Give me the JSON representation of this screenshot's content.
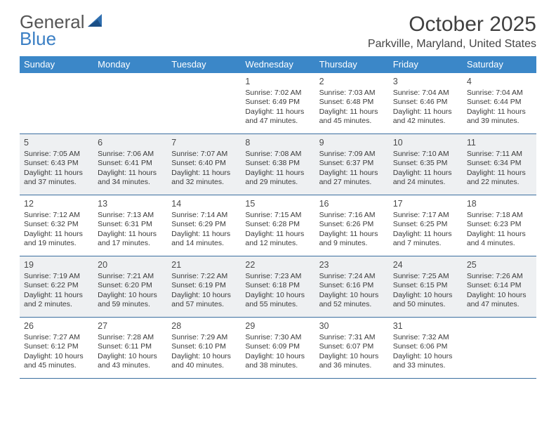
{
  "logo": {
    "text1": "General",
    "text2": "Blue"
  },
  "title": "October 2025",
  "location": "Parkville, Maryland, United States",
  "colors": {
    "header_bg": "#3b87c8",
    "header_text": "#ffffff",
    "rule": "#3b6fa0",
    "alt_row_bg": "#eef0f2",
    "text": "#3a3a3a",
    "title_color": "#404040",
    "logo_gray": "#565656",
    "logo_blue": "#3b7fc4"
  },
  "weekdays": [
    "Sunday",
    "Monday",
    "Tuesday",
    "Wednesday",
    "Thursday",
    "Friday",
    "Saturday"
  ],
  "weeks": [
    {
      "alt": false,
      "days": [
        null,
        null,
        null,
        {
          "n": "1",
          "sunrise": "7:02 AM",
          "sunset": "6:49 PM",
          "daylight": "11 hours and 47 minutes."
        },
        {
          "n": "2",
          "sunrise": "7:03 AM",
          "sunset": "6:48 PM",
          "daylight": "11 hours and 45 minutes."
        },
        {
          "n": "3",
          "sunrise": "7:04 AM",
          "sunset": "6:46 PM",
          "daylight": "11 hours and 42 minutes."
        },
        {
          "n": "4",
          "sunrise": "7:04 AM",
          "sunset": "6:44 PM",
          "daylight": "11 hours and 39 minutes."
        }
      ]
    },
    {
      "alt": true,
      "days": [
        {
          "n": "5",
          "sunrise": "7:05 AM",
          "sunset": "6:43 PM",
          "daylight": "11 hours and 37 minutes."
        },
        {
          "n": "6",
          "sunrise": "7:06 AM",
          "sunset": "6:41 PM",
          "daylight": "11 hours and 34 minutes."
        },
        {
          "n": "7",
          "sunrise": "7:07 AM",
          "sunset": "6:40 PM",
          "daylight": "11 hours and 32 minutes."
        },
        {
          "n": "8",
          "sunrise": "7:08 AM",
          "sunset": "6:38 PM",
          "daylight": "11 hours and 29 minutes."
        },
        {
          "n": "9",
          "sunrise": "7:09 AM",
          "sunset": "6:37 PM",
          "daylight": "11 hours and 27 minutes."
        },
        {
          "n": "10",
          "sunrise": "7:10 AM",
          "sunset": "6:35 PM",
          "daylight": "11 hours and 24 minutes."
        },
        {
          "n": "11",
          "sunrise": "7:11 AM",
          "sunset": "6:34 PM",
          "daylight": "11 hours and 22 minutes."
        }
      ]
    },
    {
      "alt": false,
      "days": [
        {
          "n": "12",
          "sunrise": "7:12 AM",
          "sunset": "6:32 PM",
          "daylight": "11 hours and 19 minutes."
        },
        {
          "n": "13",
          "sunrise": "7:13 AM",
          "sunset": "6:31 PM",
          "daylight": "11 hours and 17 minutes."
        },
        {
          "n": "14",
          "sunrise": "7:14 AM",
          "sunset": "6:29 PM",
          "daylight": "11 hours and 14 minutes."
        },
        {
          "n": "15",
          "sunrise": "7:15 AM",
          "sunset": "6:28 PM",
          "daylight": "11 hours and 12 minutes."
        },
        {
          "n": "16",
          "sunrise": "7:16 AM",
          "sunset": "6:26 PM",
          "daylight": "11 hours and 9 minutes."
        },
        {
          "n": "17",
          "sunrise": "7:17 AM",
          "sunset": "6:25 PM",
          "daylight": "11 hours and 7 minutes."
        },
        {
          "n": "18",
          "sunrise": "7:18 AM",
          "sunset": "6:23 PM",
          "daylight": "11 hours and 4 minutes."
        }
      ]
    },
    {
      "alt": true,
      "days": [
        {
          "n": "19",
          "sunrise": "7:19 AM",
          "sunset": "6:22 PM",
          "daylight": "11 hours and 2 minutes."
        },
        {
          "n": "20",
          "sunrise": "7:21 AM",
          "sunset": "6:20 PM",
          "daylight": "10 hours and 59 minutes."
        },
        {
          "n": "21",
          "sunrise": "7:22 AM",
          "sunset": "6:19 PM",
          "daylight": "10 hours and 57 minutes."
        },
        {
          "n": "22",
          "sunrise": "7:23 AM",
          "sunset": "6:18 PM",
          "daylight": "10 hours and 55 minutes."
        },
        {
          "n": "23",
          "sunrise": "7:24 AM",
          "sunset": "6:16 PM",
          "daylight": "10 hours and 52 minutes."
        },
        {
          "n": "24",
          "sunrise": "7:25 AM",
          "sunset": "6:15 PM",
          "daylight": "10 hours and 50 minutes."
        },
        {
          "n": "25",
          "sunrise": "7:26 AM",
          "sunset": "6:14 PM",
          "daylight": "10 hours and 47 minutes."
        }
      ]
    },
    {
      "alt": false,
      "days": [
        {
          "n": "26",
          "sunrise": "7:27 AM",
          "sunset": "6:12 PM",
          "daylight": "10 hours and 45 minutes."
        },
        {
          "n": "27",
          "sunrise": "7:28 AM",
          "sunset": "6:11 PM",
          "daylight": "10 hours and 43 minutes."
        },
        {
          "n": "28",
          "sunrise": "7:29 AM",
          "sunset": "6:10 PM",
          "daylight": "10 hours and 40 minutes."
        },
        {
          "n": "29",
          "sunrise": "7:30 AM",
          "sunset": "6:09 PM",
          "daylight": "10 hours and 38 minutes."
        },
        {
          "n": "30",
          "sunrise": "7:31 AM",
          "sunset": "6:07 PM",
          "daylight": "10 hours and 36 minutes."
        },
        {
          "n": "31",
          "sunrise": "7:32 AM",
          "sunset": "6:06 PM",
          "daylight": "10 hours and 33 minutes."
        },
        null
      ]
    }
  ]
}
